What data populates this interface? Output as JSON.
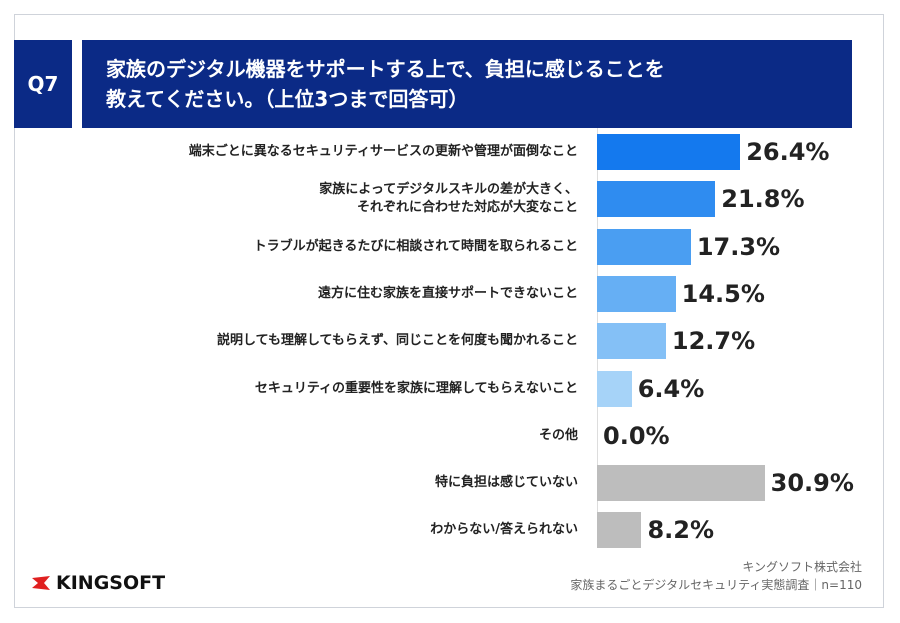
{
  "chart_data": {
    "type": "bar",
    "question": "Q7",
    "title": "家族のデジタル機器をサポートする上で、負担に感じることを\n教えてください。（上位3つまで回答可）",
    "categories": [
      "端末ごとに異なるセキュリティサービスの更新や管理が面倒なこと",
      "家族によってデジタルスキルの差が大きく、\nそれぞれに合わせた対応が大変なこと",
      "トラブルが起きるたびに相談されて時間を取られること",
      "遠方に住む家族を直接サポートできないこと",
      "説明しても理解してもらえず、同じことを何度も聞かれること",
      "セキュリティの重要性を家族に理解してもらえないこと",
      "その他",
      "特に負担は感じていない",
      "わからない/答えられない"
    ],
    "values": [
      26.4,
      21.8,
      17.3,
      14.5,
      12.7,
      6.4,
      0.0,
      30.9,
      8.2
    ],
    "value_labels": [
      "26.4%",
      "21.8%",
      "17.3%",
      "14.5%",
      "12.7%",
      "6.4%",
      "0.0%",
      "30.9%",
      "8.2%"
    ],
    "colors": [
      "#1479ee",
      "#2f8cf0",
      "#4a9ef2",
      "#66aff4",
      "#84c0f6",
      "#a6d3f8",
      "#a6d3f8",
      "#bdbdbd",
      "#bdbdbd"
    ],
    "xlim": [
      0,
      40
    ],
    "source": [
      "キングソフト株式会社",
      "家族まるごとデジタルセキュリティ実態調査｜n=110"
    ]
  },
  "logo": "KINGSOFT"
}
